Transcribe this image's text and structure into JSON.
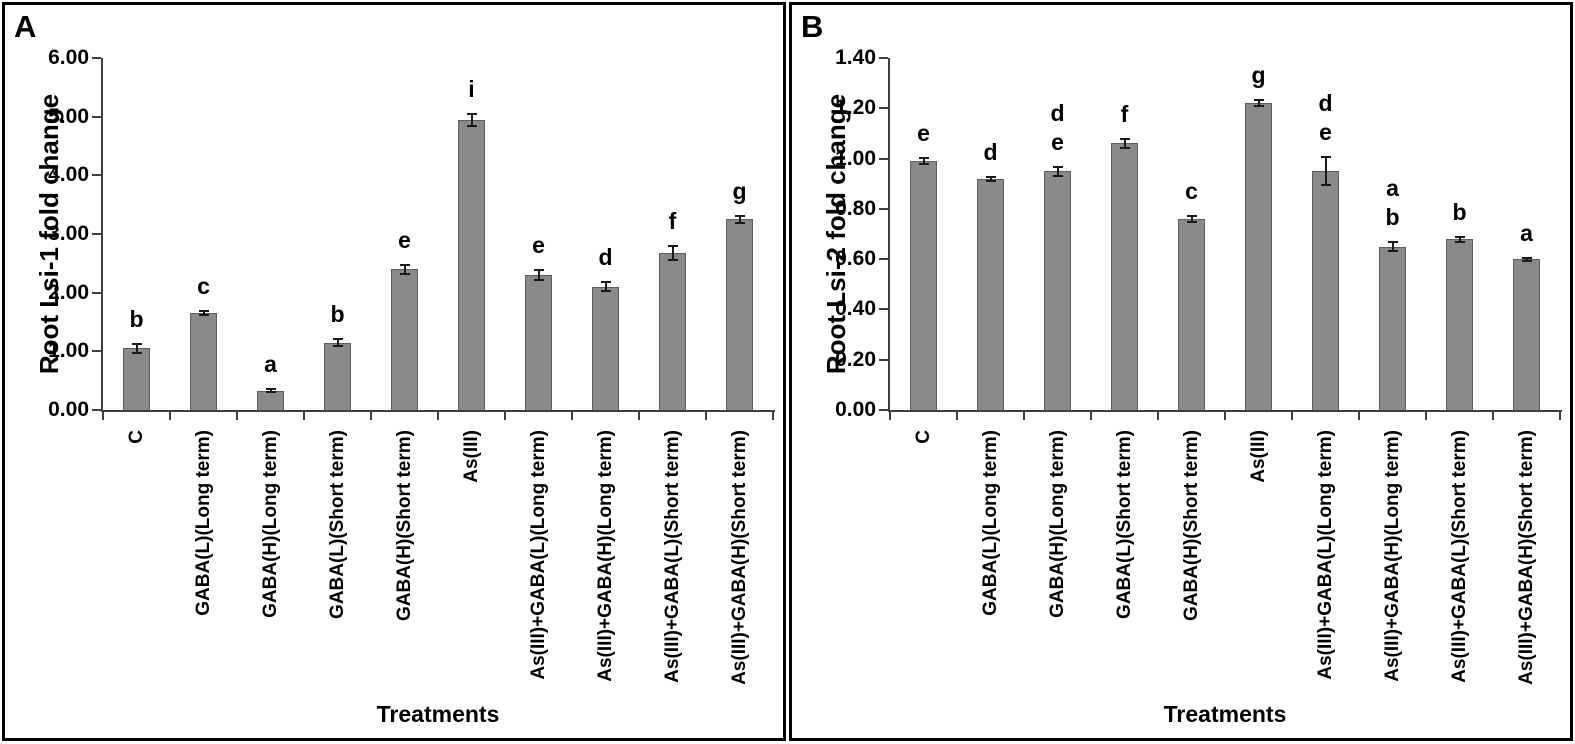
{
  "colors": {
    "bar_fill": "#8a8a8a",
    "bar_border": "#5e5e5e",
    "axis": "#3f3f3f",
    "error_bar": "#1a1a1a",
    "text": "#000000",
    "panel_border": "#000000"
  },
  "chart_data": [
    {
      "type": "bar",
      "panel_label": "A",
      "title": "",
      "xlabel": "Treatments",
      "ylabel": "Root Lsi-1 fold change",
      "ylim": [
        0,
        6
      ],
      "ytick_step": 1,
      "ytick_labels": [
        "0.00",
        "1.00",
        "2.00",
        "3.00",
        "4.00",
        "5.00",
        "6.00"
      ],
      "grid": false,
      "legend": null,
      "categories": [
        "C",
        "GABA(L)(Long term)",
        "GABA(H)(Long term)",
        "GABA(L)(Short term)",
        "GABA(H)(Short term)",
        "As(III)",
        "As(III)+GABA(L)(Long term)",
        "As(III)+GABA(H)(Long term)",
        "As(III)+GABA(L)(Short term)",
        "As(III)+GABA(H)(Short term)"
      ],
      "values": [
        1.05,
        1.65,
        0.33,
        1.15,
        2.4,
        4.94,
        2.3,
        2.1,
        2.67,
        3.25
      ],
      "errors": [
        0.07,
        0.03,
        0.03,
        0.06,
        0.08,
        0.1,
        0.09,
        0.08,
        0.12,
        0.06
      ],
      "sig_letters": [
        "b",
        "c",
        "a",
        "b",
        "e",
        "i",
        "e",
        "d",
        "f",
        "g"
      ]
    },
    {
      "type": "bar",
      "panel_label": "B",
      "title": "",
      "xlabel": "Treatments",
      "ylabel": "Root Lsi-2 fold change",
      "ylim": [
        0,
        1.4
      ],
      "ytick_step": 0.2,
      "ytick_labels": [
        "0.00",
        "0.20",
        "0.40",
        "0.60",
        "0.80",
        "1.00",
        "1.20",
        "1.40"
      ],
      "grid": false,
      "legend": null,
      "categories": [
        "C",
        "GABA(L)(Long term)",
        "GABA(H)(Long term)",
        "GABA(L)(Short term)",
        "GABA(H)(Short term)",
        "As(III)",
        "As(III)+GABA(L)(Long term)",
        "As(III)+GABA(H)(Long term)",
        "As(III)+GABA(L)(Short term)",
        "As(III)+GABA(H)(Short term)"
      ],
      "values": [
        0.99,
        0.92,
        0.95,
        1.06,
        0.76,
        1.22,
        0.95,
        0.65,
        0.68,
        0.6
      ],
      "errors": [
        0.012,
        0.008,
        0.018,
        0.018,
        0.012,
        0.012,
        0.055,
        0.018,
        0.01,
        0.006
      ],
      "sig_letters": [
        "e",
        "d",
        "de",
        "f",
        "c",
        "g",
        "de",
        "ab",
        "b",
        "a"
      ]
    }
  ]
}
